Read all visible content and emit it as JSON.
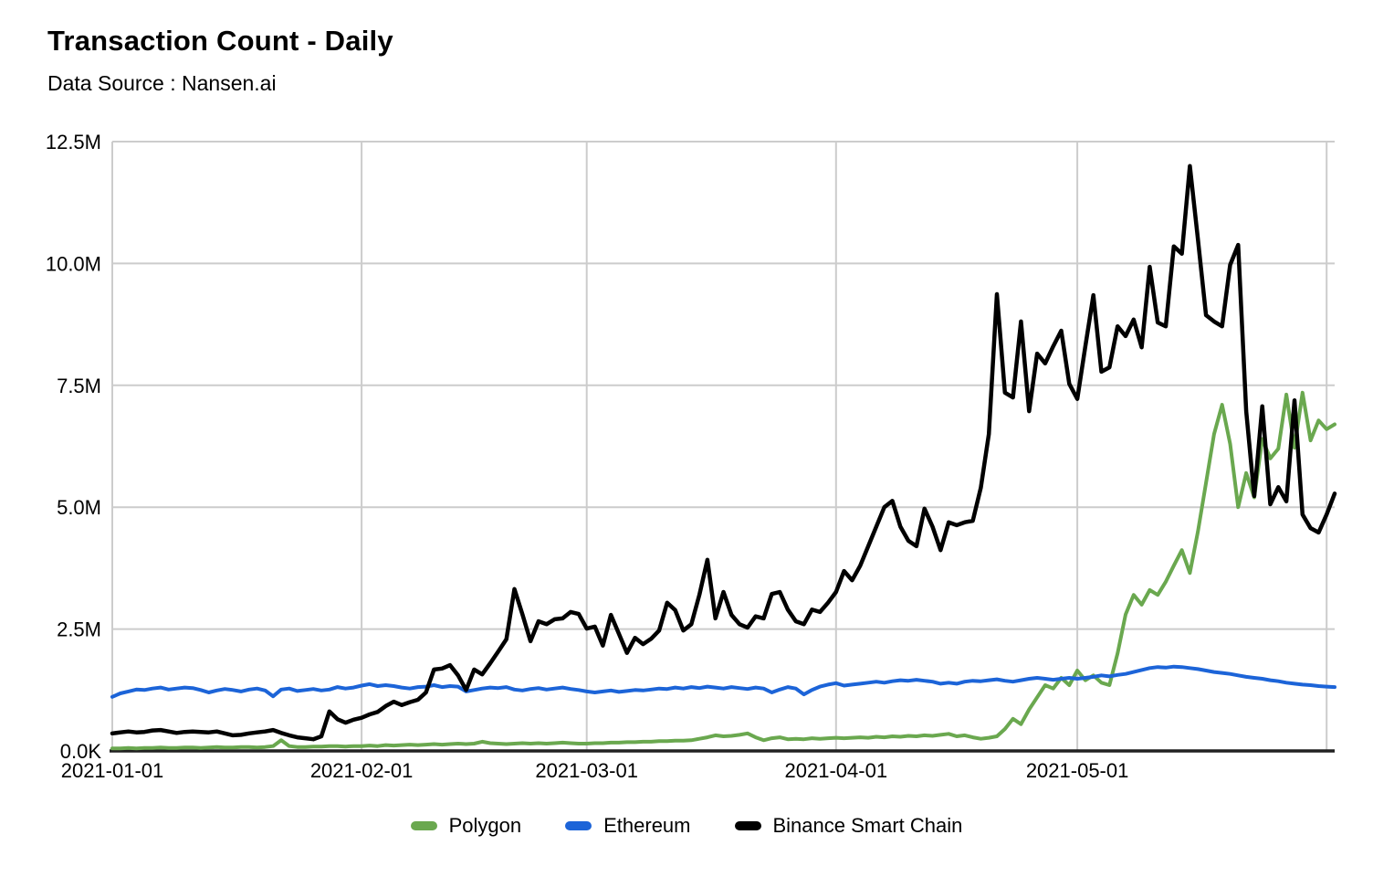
{
  "header": {
    "title": "Transaction Count - Daily",
    "subtitle": "Data Source : Nansen.ai"
  },
  "chart_data": {
    "type": "line",
    "title": "Transaction Count - Daily",
    "subtitle": "Data Source : Nansen.ai",
    "x_unit": "day",
    "x_start": "2021-01-01",
    "x_end": "2021-06-02",
    "y_unit": "transactions per day (millions)",
    "ylim": [
      0,
      12.5
    ],
    "grid": "both",
    "legend_position": "bottom",
    "y_tick_values": [
      0,
      2.5,
      5,
      7.5,
      10,
      12.5
    ],
    "y_tick_labels": [
      "0.0K",
      "2.5M",
      "5.0M",
      "7.5M",
      "10.0M",
      "12.5M"
    ],
    "x_ticks": [
      {
        "label": "2021-01-01",
        "day_index": 0
      },
      {
        "label": "2021-02-01",
        "day_index": 31
      },
      {
        "label": "2021-03-01",
        "day_index": 59
      },
      {
        "label": "2021-04-01",
        "day_index": 90
      },
      {
        "label": "2021-05-01",
        "day_index": 120
      },
      {
        "label": "",
        "day_index": 151
      }
    ],
    "series": [
      {
        "name": "Polygon",
        "color": "#6aa84f",
        "values_millions": [
          0.05,
          0.05,
          0.06,
          0.05,
          0.06,
          0.06,
          0.07,
          0.06,
          0.06,
          0.07,
          0.07,
          0.06,
          0.07,
          0.08,
          0.07,
          0.07,
          0.08,
          0.08,
          0.07,
          0.08,
          0.1,
          0.22,
          0.1,
          0.08,
          0.08,
          0.09,
          0.09,
          0.1,
          0.1,
          0.09,
          0.1,
          0.1,
          0.11,
          0.1,
          0.12,
          0.11,
          0.12,
          0.13,
          0.12,
          0.13,
          0.14,
          0.13,
          0.14,
          0.15,
          0.14,
          0.15,
          0.19,
          0.16,
          0.15,
          0.14,
          0.15,
          0.16,
          0.15,
          0.16,
          0.15,
          0.16,
          0.17,
          0.16,
          0.15,
          0.15,
          0.16,
          0.16,
          0.17,
          0.17,
          0.18,
          0.18,
          0.19,
          0.19,
          0.2,
          0.2,
          0.21,
          0.21,
          0.22,
          0.25,
          0.28,
          0.32,
          0.3,
          0.31,
          0.33,
          0.36,
          0.28,
          0.22,
          0.26,
          0.28,
          0.24,
          0.25,
          0.24,
          0.26,
          0.25,
          0.26,
          0.27,
          0.26,
          0.27,
          0.28,
          0.27,
          0.29,
          0.28,
          0.3,
          0.29,
          0.31,
          0.3,
          0.32,
          0.31,
          0.33,
          0.35,
          0.3,
          0.32,
          0.28,
          0.25,
          0.27,
          0.3,
          0.45,
          0.66,
          0.55,
          0.85,
          1.1,
          1.35,
          1.28,
          1.5,
          1.35,
          1.65,
          1.45,
          1.55,
          1.4,
          1.35,
          2.0,
          2.8,
          3.2,
          3.0,
          3.3,
          3.2,
          3.47,
          3.8,
          4.12,
          3.65,
          4.5,
          5.5,
          6.5,
          7.1,
          6.3,
          5.0,
          5.7,
          5.2,
          6.4,
          6.0,
          6.2,
          7.31,
          6.22,
          7.35,
          6.37,
          6.78,
          6.6,
          6.7
        ]
      },
      {
        "name": "Ethereum",
        "color": "#1c64d8",
        "values_millions": [
          1.11,
          1.18,
          1.22,
          1.26,
          1.25,
          1.28,
          1.3,
          1.26,
          1.28,
          1.3,
          1.29,
          1.25,
          1.2,
          1.24,
          1.27,
          1.25,
          1.22,
          1.26,
          1.28,
          1.24,
          1.12,
          1.26,
          1.28,
          1.23,
          1.25,
          1.27,
          1.24,
          1.26,
          1.31,
          1.28,
          1.3,
          1.34,
          1.37,
          1.33,
          1.35,
          1.33,
          1.3,
          1.28,
          1.31,
          1.32,
          1.35,
          1.31,
          1.33,
          1.32,
          1.22,
          1.25,
          1.28,
          1.3,
          1.29,
          1.31,
          1.26,
          1.24,
          1.27,
          1.29,
          1.26,
          1.28,
          1.3,
          1.27,
          1.25,
          1.22,
          1.2,
          1.22,
          1.24,
          1.21,
          1.23,
          1.25,
          1.24,
          1.26,
          1.28,
          1.27,
          1.3,
          1.28,
          1.31,
          1.29,
          1.32,
          1.3,
          1.28,
          1.31,
          1.29,
          1.27,
          1.3,
          1.28,
          1.2,
          1.26,
          1.31,
          1.28,
          1.16,
          1.25,
          1.32,
          1.36,
          1.39,
          1.34,
          1.36,
          1.38,
          1.4,
          1.42,
          1.4,
          1.43,
          1.45,
          1.44,
          1.46,
          1.44,
          1.42,
          1.38,
          1.4,
          1.38,
          1.42,
          1.44,
          1.43,
          1.45,
          1.47,
          1.44,
          1.42,
          1.45,
          1.48,
          1.5,
          1.48,
          1.46,
          1.48,
          1.5,
          1.48,
          1.5,
          1.52,
          1.55,
          1.53,
          1.56,
          1.58,
          1.62,
          1.66,
          1.7,
          1.72,
          1.71,
          1.73,
          1.72,
          1.7,
          1.68,
          1.65,
          1.62,
          1.6,
          1.58,
          1.55,
          1.52,
          1.5,
          1.48,
          1.45,
          1.43,
          1.4,
          1.38,
          1.36,
          1.35,
          1.33,
          1.32,
          1.31
        ]
      },
      {
        "name": "Binance Smart Chain",
        "color": "#000000",
        "values_millions": [
          0.36,
          0.38,
          0.4,
          0.38,
          0.39,
          0.42,
          0.43,
          0.4,
          0.37,
          0.39,
          0.4,
          0.39,
          0.38,
          0.4,
          0.36,
          0.32,
          0.33,
          0.36,
          0.38,
          0.4,
          0.43,
          0.37,
          0.32,
          0.28,
          0.26,
          0.24,
          0.3,
          0.81,
          0.65,
          0.58,
          0.64,
          0.68,
          0.75,
          0.8,
          0.92,
          1.01,
          0.94,
          1.0,
          1.05,
          1.2,
          1.67,
          1.69,
          1.76,
          1.55,
          1.25,
          1.67,
          1.57,
          1.8,
          2.04,
          2.29,
          3.32,
          2.8,
          2.25,
          2.66,
          2.6,
          2.7,
          2.72,
          2.85,
          2.81,
          2.51,
          2.55,
          2.16,
          2.79,
          2.4,
          2.01,
          2.32,
          2.19,
          2.3,
          2.47,
          3.04,
          2.89,
          2.47,
          2.6,
          3.2,
          3.92,
          2.72,
          3.26,
          2.79,
          2.6,
          2.53,
          2.76,
          2.72,
          3.22,
          3.26,
          2.9,
          2.66,
          2.6,
          2.9,
          2.85,
          3.04,
          3.26,
          3.69,
          3.5,
          3.8,
          4.2,
          4.6,
          5.0,
          5.13,
          4.6,
          4.31,
          4.2,
          4.97,
          4.6,
          4.12,
          4.69,
          4.63,
          4.69,
          4.72,
          5.4,
          6.5,
          9.37,
          7.35,
          7.25,
          8.81,
          6.97,
          8.15,
          7.95,
          8.3,
          8.62,
          7.53,
          7.22,
          8.3,
          9.35,
          7.78,
          7.87,
          8.71,
          8.51,
          8.85,
          8.28,
          9.93,
          8.79,
          8.71,
          10.35,
          10.2,
          12.0,
          10.5,
          8.94,
          8.81,
          8.71,
          9.97,
          10.38,
          6.97,
          5.23,
          7.07,
          5.06,
          5.41,
          5.12,
          7.19,
          4.85,
          4.57,
          4.48,
          4.85,
          5.28
        ]
      }
    ]
  }
}
